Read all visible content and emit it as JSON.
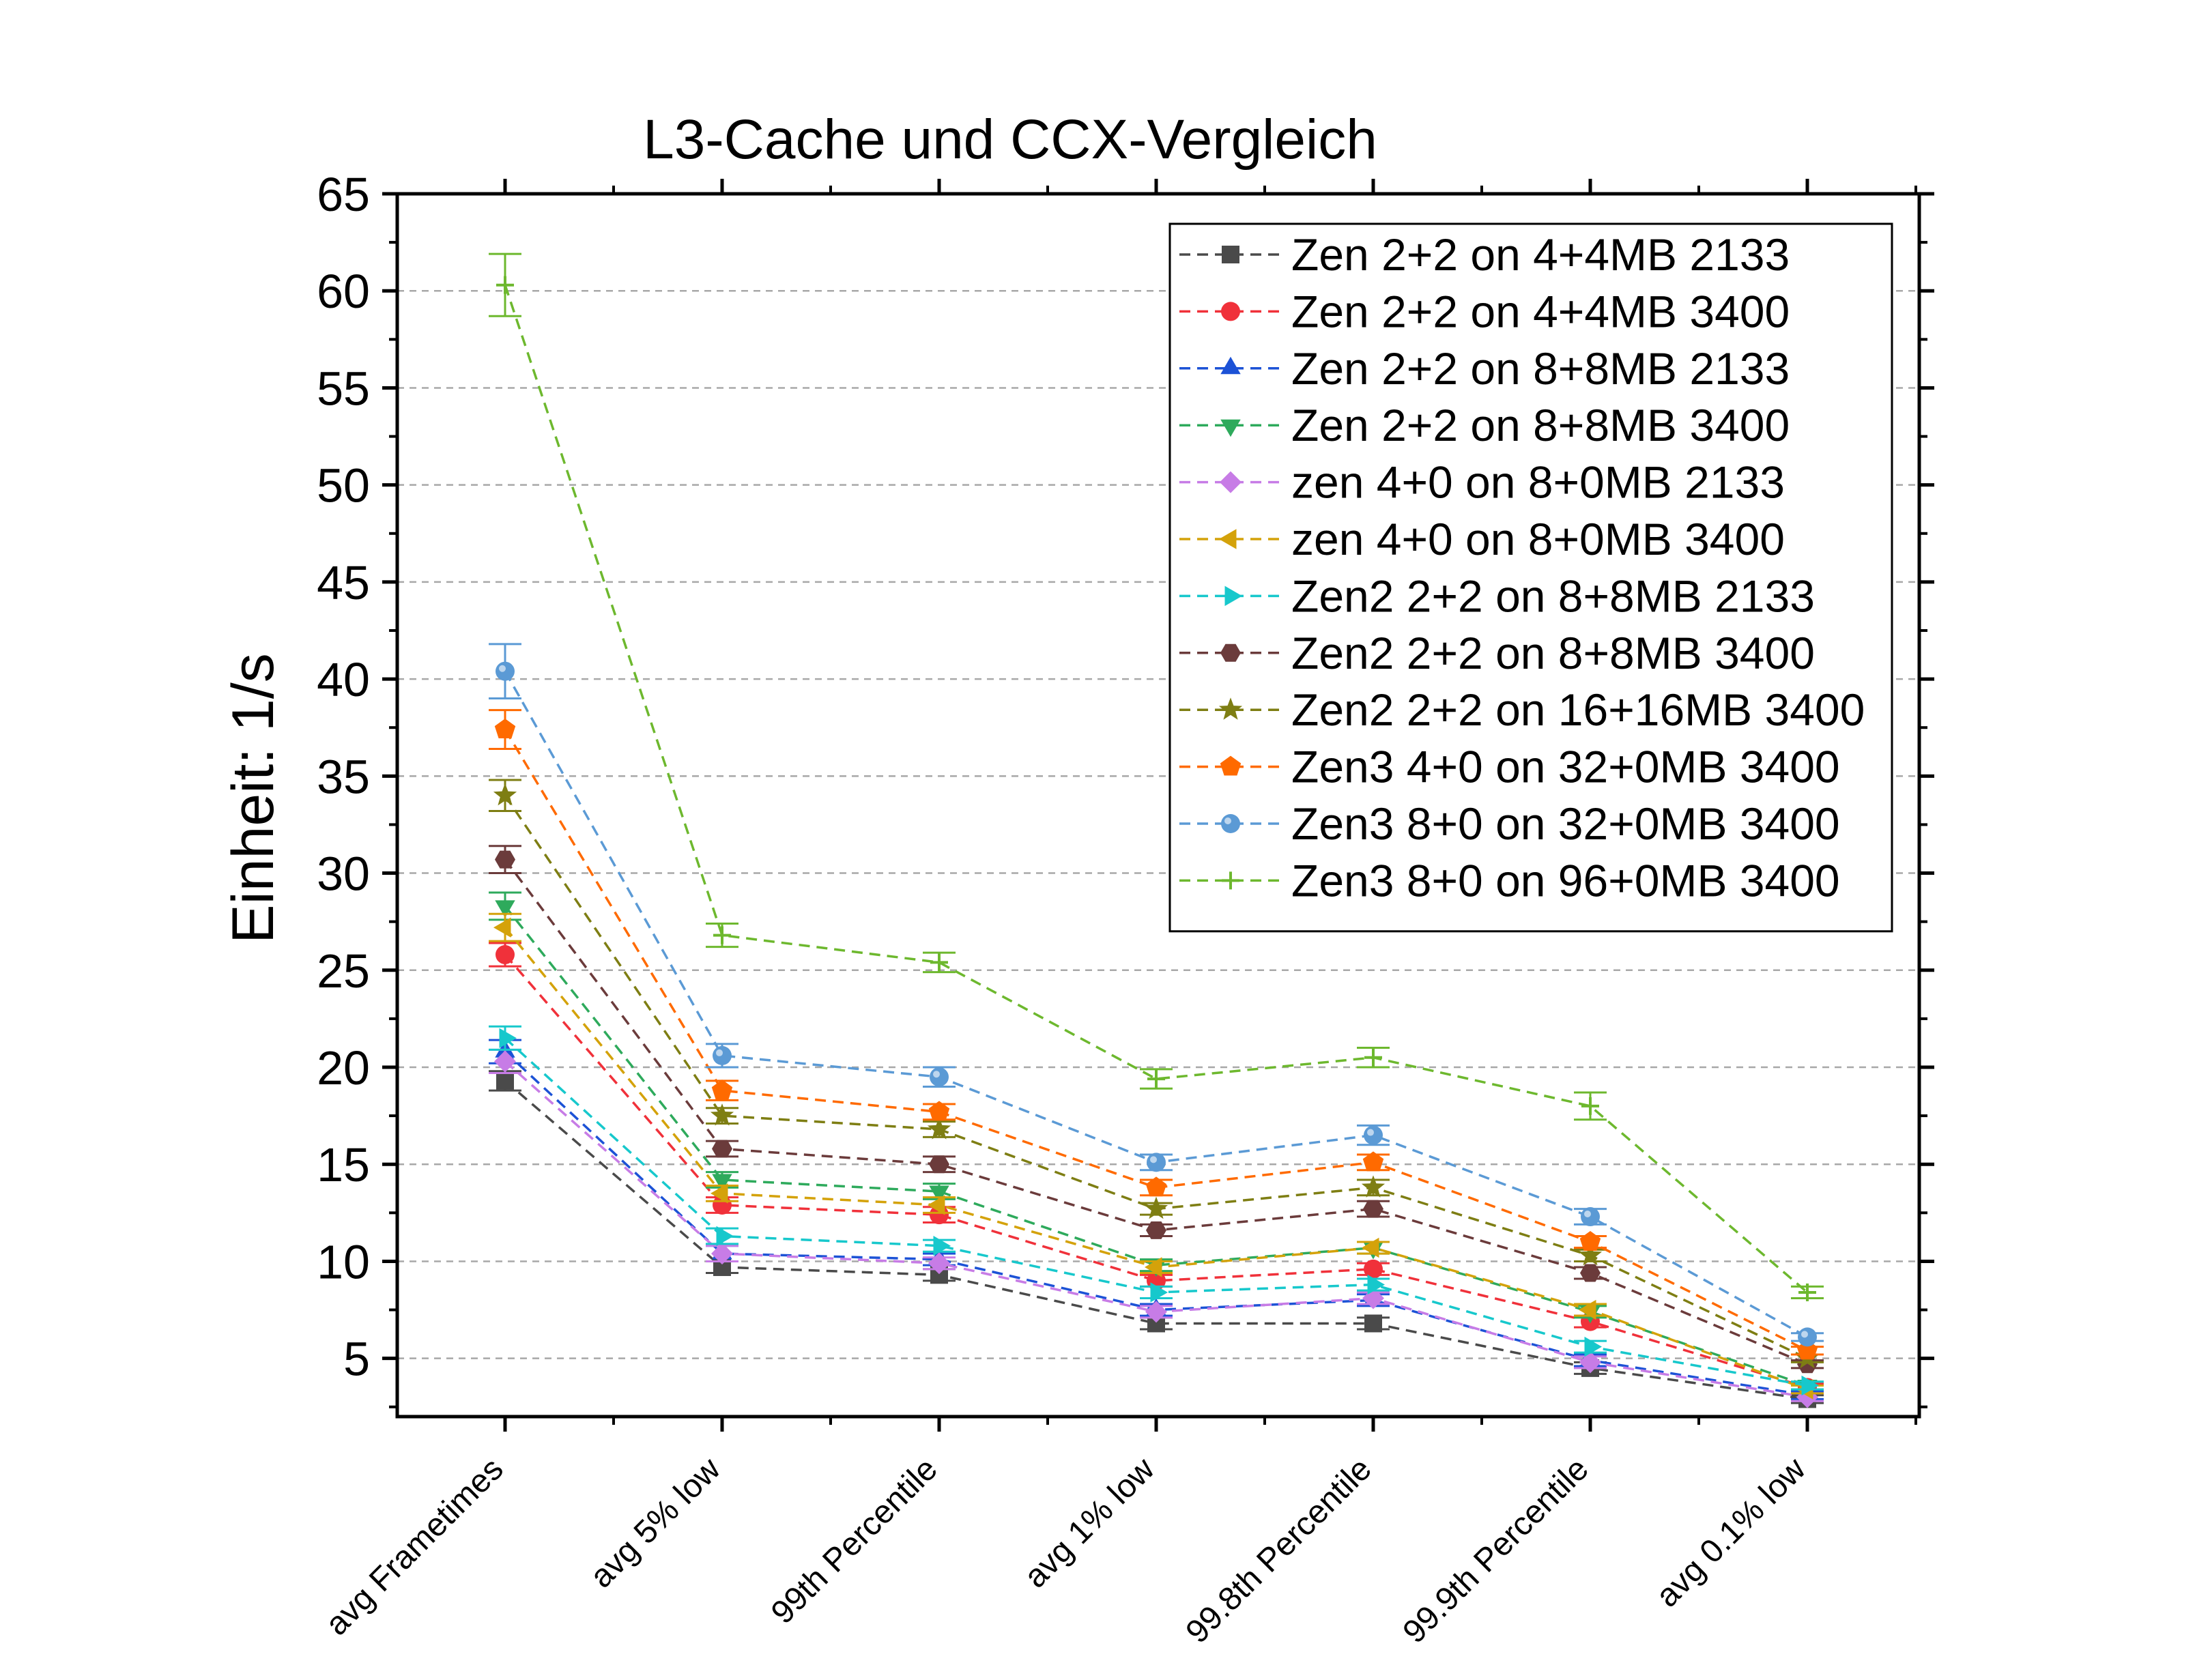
{
  "chart_data": {
    "type": "line",
    "title": "L3-Cache und CCX-Vergleich",
    "xlabel": "",
    "ylabel": "Einheit: 1/s",
    "ylim": [
      2,
      65
    ],
    "yticks": [
      5,
      10,
      15,
      20,
      25,
      30,
      35,
      40,
      45,
      50,
      55,
      60,
      65
    ],
    "grid": true,
    "legend_position": "top-right",
    "categories": [
      "avg Frametimes",
      "avg 5% low",
      "99th Percentile",
      "avg 1% low",
      "99.8th Percentile",
      "99.9th Percentile",
      "avg 0.1% low"
    ],
    "series": [
      {
        "name": "Zen 2+2 on 4+4MB 2133",
        "color": "#4a4a4a",
        "marker": "square",
        "values": [
          19.3,
          9.7,
          9.3,
          6.8,
          6.8,
          4.5,
          2.9
        ],
        "errors": [
          0.5,
          0.3,
          0.3,
          0.3,
          0.3,
          0.3,
          0.2
        ]
      },
      {
        "name": "Zen 2+2 on 4+4MB 3400",
        "color": "#f0313a",
        "marker": "circle",
        "values": [
          25.8,
          12.9,
          12.4,
          9.0,
          9.6,
          6.9,
          3.5
        ],
        "errors": [
          0.6,
          0.4,
          0.4,
          0.3,
          0.3,
          0.3,
          0.2
        ]
      },
      {
        "name": "Zen 2+2 on 8+8MB 2133",
        "color": "#1c52d6",
        "marker": "triangle-up",
        "values": [
          20.8,
          10.4,
          10.1,
          7.5,
          8.0,
          4.9,
          3.1
        ],
        "errors": [
          0.6,
          0.4,
          0.3,
          0.3,
          0.3,
          0.3,
          0.2
        ]
      },
      {
        "name": "Zen 2+2 on 8+8MB 3400",
        "color": "#2eaa5c",
        "marker": "triangle-down",
        "values": [
          28.3,
          14.2,
          13.6,
          9.8,
          10.7,
          7.4,
          3.6
        ],
        "errors": [
          0.7,
          0.4,
          0.4,
          0.3,
          0.3,
          0.3,
          0.2
        ]
      },
      {
        "name": "zen 4+0 on 8+0MB 2133",
        "color": "#c77ce6",
        "marker": "diamond",
        "values": [
          20.3,
          10.4,
          9.9,
          7.4,
          8.1,
          4.8,
          3.0
        ],
        "errors": [
          0.6,
          0.4,
          0.3,
          0.3,
          0.3,
          0.3,
          0.2
        ]
      },
      {
        "name": "zen 4+0 on 8+0MB 3400",
        "color": "#d4a20a",
        "marker": "triangle-left",
        "values": [
          27.2,
          13.5,
          12.9,
          9.7,
          10.7,
          7.5,
          3.4
        ],
        "errors": [
          0.7,
          0.4,
          0.4,
          0.3,
          0.3,
          0.3,
          0.2
        ]
      },
      {
        "name": "Zen2 2+2 on 8+8MB 2133",
        "color": "#17c8cc",
        "marker": "triangle-right",
        "values": [
          21.5,
          11.3,
          10.8,
          8.4,
          8.8,
          5.6,
          3.6
        ],
        "errors": [
          0.6,
          0.4,
          0.3,
          0.3,
          0.3,
          0.3,
          0.2
        ]
      },
      {
        "name": "Zen2 2+2 on 8+8MB 3400",
        "color": "#6b3b3b",
        "marker": "hexagon",
        "values": [
          30.7,
          15.8,
          15.0,
          11.6,
          12.7,
          9.4,
          4.7
        ],
        "errors": [
          0.7,
          0.4,
          0.4,
          0.3,
          0.4,
          0.3,
          0.2
        ]
      },
      {
        "name": "Zen2 2+2 on 16+16MB 3400",
        "color": "#7e7e13",
        "marker": "star",
        "values": [
          34.0,
          17.5,
          16.8,
          12.7,
          13.8,
          10.3,
          5.0
        ],
        "errors": [
          0.8,
          0.4,
          0.4,
          0.3,
          0.4,
          0.3,
          0.2
        ]
      },
      {
        "name": "Zen3 4+0 on 32+0MB 3400",
        "color": "#ff6a00",
        "marker": "pentagon",
        "values": [
          37.4,
          18.8,
          17.7,
          13.8,
          15.1,
          11.0,
          5.4
        ],
        "errors": [
          1.0,
          0.5,
          0.4,
          0.4,
          0.4,
          0.3,
          0.2
        ]
      },
      {
        "name": "Zen3 8+0 on 32+0MB 3400",
        "color": "#5b9ad5",
        "marker": "sphere",
        "values": [
          40.4,
          20.6,
          19.5,
          15.1,
          16.5,
          12.3,
          6.1
        ],
        "errors": [
          1.4,
          0.6,
          0.5,
          0.4,
          0.5,
          0.4,
          0.2
        ]
      },
      {
        "name": "Zen3 8+0 on 96+0MB 3400",
        "color": "#6db82e",
        "marker": "plus",
        "values": [
          60.3,
          26.8,
          25.4,
          19.4,
          20.5,
          18.0,
          8.4
        ],
        "errors": [
          1.6,
          0.6,
          0.5,
          0.5,
          0.5,
          0.7,
          0.3
        ]
      }
    ]
  }
}
